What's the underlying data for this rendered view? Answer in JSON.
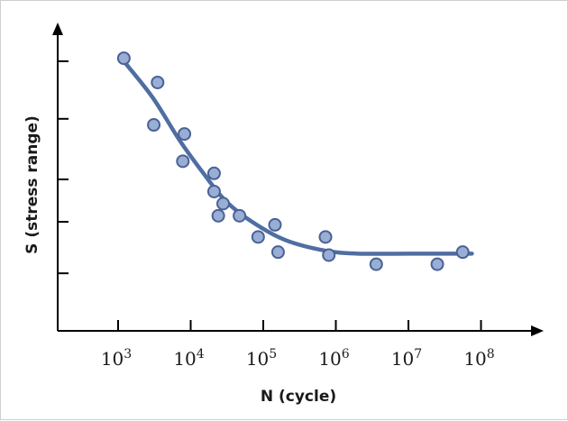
{
  "chart_data": {
    "type": "scatter",
    "title": "",
    "xlabel": "N (cycle)",
    "ylabel": "S (stress range)",
    "x_scale": "log",
    "xlim": [
      100,
      100000000
    ],
    "ylim": [
      0,
      10
    ],
    "x_ticks": [
      {
        "value": 1000,
        "base": "10",
        "exp": "3"
      },
      {
        "value": 10000,
        "base": "10",
        "exp": "4"
      },
      {
        "value": 100000,
        "base": "10",
        "exp": "5"
      },
      {
        "value": 1000000,
        "base": "10",
        "exp": "6"
      },
      {
        "value": 10000000,
        "base": "10",
        "exp": "7"
      },
      {
        "value": 100000000,
        "base": "10",
        "exp": "8"
      }
    ],
    "y_ticks_unlabeled": [
      1.9,
      3.6,
      5.0,
      7.0,
      8.9
    ],
    "grid": false,
    "colors": {
      "point_fill": "#99aed4",
      "point_stroke": "#4a6196",
      "curve": "#4f6ea2",
      "axis": "#000000"
    },
    "points": [
      {
        "x": 1200,
        "y": 9.0
      },
      {
        "x": 3500,
        "y": 8.2
      },
      {
        "x": 3100,
        "y": 6.8
      },
      {
        "x": 8200,
        "y": 6.5
      },
      {
        "x": 7800,
        "y": 5.6
      },
      {
        "x": 21000,
        "y": 5.2
      },
      {
        "x": 21000,
        "y": 4.6
      },
      {
        "x": 28000,
        "y": 4.2
      },
      {
        "x": 24000,
        "y": 3.8
      },
      {
        "x": 47000,
        "y": 3.8
      },
      {
        "x": 85000,
        "y": 3.1
      },
      {
        "x": 145000,
        "y": 3.5
      },
      {
        "x": 160000,
        "y": 2.6
      },
      {
        "x": 720000,
        "y": 3.1
      },
      {
        "x": 800000,
        "y": 2.5
      },
      {
        "x": 3600000,
        "y": 2.2
      },
      {
        "x": 25000000,
        "y": 2.2
      },
      {
        "x": 56000000,
        "y": 2.6
      }
    ],
    "fit_curve": [
      {
        "x": 1200,
        "y": 8.9
      },
      {
        "x": 3000,
        "y": 7.7
      },
      {
        "x": 7000,
        "y": 6.3
      },
      {
        "x": 15000,
        "y": 5.2
      },
      {
        "x": 30000,
        "y": 4.3
      },
      {
        "x": 70000,
        "y": 3.6
      },
      {
        "x": 200000,
        "y": 3.0
      },
      {
        "x": 700000,
        "y": 2.65
      },
      {
        "x": 2000000,
        "y": 2.55
      },
      {
        "x": 10000000,
        "y": 2.55
      },
      {
        "x": 75000000,
        "y": 2.55
      }
    ]
  }
}
